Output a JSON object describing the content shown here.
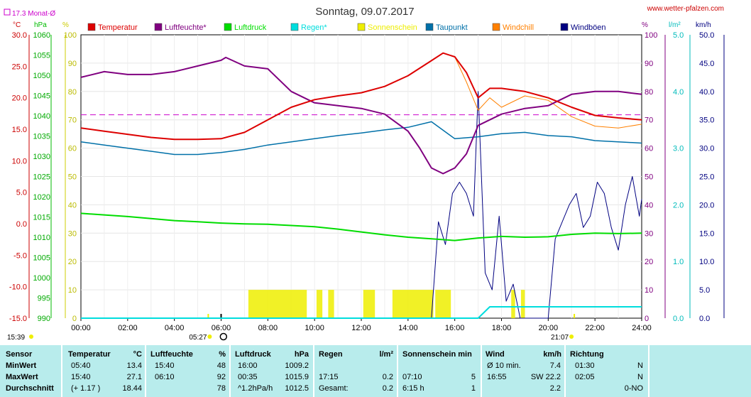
{
  "title": "Sonntag, 09.07.2017",
  "website": "www.wetter-pfalzen.com",
  "monthly_avg_label": "17.3 Monat-Ø",
  "units": {
    "temp": "°C",
    "pressure": "hPa",
    "humidity_left": "%",
    "humidity_right": "%",
    "rain": "l/m²",
    "wind": "km/h"
  },
  "axes": {
    "temp_ticks": [
      "30.0",
      "25.0",
      "20.0",
      "15.0",
      "10.0",
      "5.0",
      "0.0",
      "-5.0",
      "-10.0",
      "-15.0"
    ],
    "pressure_ticks": [
      "1060",
      "1055",
      "1050",
      "1045",
      "1040",
      "1035",
      "1030",
      "1025",
      "1020",
      "1015",
      "1010",
      "1005",
      "1000",
      "995",
      "990"
    ],
    "humidity_left_ticks": [
      "100",
      "90",
      "80",
      "70",
      "60",
      "50",
      "40",
      "30",
      "20",
      "10",
      "0"
    ],
    "humidity_right_ticks": [
      "100",
      "90",
      "80",
      "70",
      "60",
      "50",
      "40",
      "30",
      "20",
      "10",
      "0"
    ],
    "rain_ticks": [
      "5.0",
      "4.0",
      "3.0",
      "2.0",
      "1.0",
      "0.0"
    ],
    "wind_ticks": [
      "50.0",
      "45.0",
      "40.0",
      "35.0",
      "30.0",
      "25.0",
      "20.0",
      "15.0",
      "10.0",
      "5.0",
      "0.0"
    ],
    "time_ticks": [
      "00:00",
      "02:00",
      "04:00",
      "06:00",
      "08:00",
      "10:00",
      "12:00",
      "14:00",
      "16:00",
      "18:00",
      "20:00",
      "22:00",
      "24:00"
    ],
    "sunrise": "05:27",
    "sunset": "21:07",
    "first_light": "15:39"
  },
  "legend": [
    {
      "label": "Temperatur",
      "color": "#dd0000"
    },
    {
      "label": "Luftfeuchte*",
      "color": "#800080"
    },
    {
      "label": "Luftdruck",
      "color": "#00dd00"
    },
    {
      "label": "Regen*",
      "color": "#00dddd"
    },
    {
      "label": "Sonnenschein",
      "color": "#eeee00"
    },
    {
      "label": "Taupunkt",
      "color": "#0070a8"
    },
    {
      "label": "Windchill",
      "color": "#ff8000"
    },
    {
      "label": "Windböen",
      "color": "#000080"
    }
  ],
  "chart_data": {
    "type": "line",
    "title": "Sonntag, 09.07.2017",
    "x_range": [
      "00:00",
      "24:00"
    ],
    "y_ranges": {
      "temperature": [
        -15,
        30
      ],
      "pressure": [
        990,
        1060
      ],
      "humidity": [
        0,
        100
      ],
      "rain": [
        0,
        5
      ],
      "wind": [
        0,
        50
      ]
    },
    "monthly_avg_temp": 17.3,
    "series": [
      {
        "name": "Temperatur",
        "unit": "°C",
        "color": "#dd0000",
        "x": [
          0,
          1,
          2,
          3,
          4,
          5,
          6,
          7,
          8,
          9,
          10,
          11,
          12,
          13,
          14,
          15,
          15.5,
          16,
          16.5,
          17,
          17.5,
          18,
          19,
          20,
          21,
          22,
          23,
          24
        ],
        "values": [
          15.2,
          14.7,
          14.2,
          13.7,
          13.4,
          13.4,
          13.5,
          14.5,
          16.5,
          18.5,
          19.7,
          20.3,
          20.8,
          21.8,
          23.5,
          25.9,
          27.1,
          26.5,
          24.0,
          20.0,
          21.5,
          21.5,
          21.0,
          20.0,
          18.5,
          17.2,
          16.8,
          16.5
        ]
      },
      {
        "name": "Luftfeuchte*",
        "unit": "%",
        "color": "#800080",
        "x": [
          0,
          1,
          2,
          3,
          4,
          5,
          6,
          6.2,
          7,
          8,
          9,
          10,
          11,
          12,
          13,
          14,
          14.5,
          15,
          15.5,
          16,
          16.5,
          17,
          17.5,
          18,
          19,
          20,
          21,
          22,
          23,
          24
        ],
        "values": [
          85,
          87,
          86,
          86,
          87,
          89,
          91,
          92,
          89,
          88,
          80,
          76,
          75,
          74,
          72,
          66,
          60,
          53,
          51,
          53,
          58,
          68,
          70,
          72,
          74,
          75,
          79,
          80,
          80,
          79
        ]
      },
      {
        "name": "Luftdruck",
        "unit": "hPa",
        "color": "#00dd00",
        "x": [
          0,
          1,
          2,
          3,
          4,
          5,
          6,
          7,
          8,
          9,
          10,
          11,
          12,
          13,
          14,
          15,
          16,
          17,
          18,
          19,
          20,
          21,
          22,
          23,
          24
        ],
        "values": [
          1015.9,
          1015.5,
          1015.1,
          1014.6,
          1014.1,
          1013.8,
          1013.5,
          1013.3,
          1013.2,
          1012.9,
          1012.6,
          1012.0,
          1011.3,
          1010.6,
          1010.0,
          1009.6,
          1009.2,
          1009.8,
          1010.2,
          1010.0,
          1010.1,
          1010.7,
          1011.0,
          1010.9,
          1011.0
        ]
      },
      {
        "name": "Regen*",
        "unit": "l/m²",
        "color": "#00dddd",
        "x": [
          0,
          17.0,
          17.25,
          17.5,
          18,
          24
        ],
        "values": [
          0,
          0,
          0.1,
          0.2,
          0.2,
          0.2
        ]
      },
      {
        "name": "Taupunkt",
        "unit": "°C",
        "color": "#0070a8",
        "x": [
          0,
          1,
          2,
          3,
          4,
          5,
          6,
          7,
          8,
          9,
          10,
          11,
          12,
          13,
          14,
          15,
          16,
          17,
          18,
          19,
          20,
          21,
          22,
          23,
          24
        ],
        "values": [
          13.0,
          12.5,
          12.0,
          11.5,
          11.0,
          11.0,
          11.3,
          11.8,
          12.5,
          13.0,
          13.5,
          14.0,
          14.4,
          14.9,
          15.3,
          16.2,
          13.5,
          13.8,
          14.3,
          14.5,
          14.0,
          13.8,
          13.2,
          13.0,
          12.8
        ]
      },
      {
        "name": "Windchill",
        "unit": "°C",
        "color": "#ff8000",
        "x": [
          16,
          16.5,
          17,
          17.5,
          18,
          19,
          20,
          21,
          22,
          23,
          24
        ],
        "values": [
          26.5,
          22.5,
          18.0,
          20.0,
          18.5,
          20.3,
          19.6,
          17.0,
          15.5,
          15.2,
          15.8
        ]
      },
      {
        "name": "Windböen",
        "unit": "km/h",
        "color": "#000080",
        "x": [
          0,
          15.0,
          15.3,
          15.6,
          15.9,
          16.2,
          16.5,
          16.8,
          17.0,
          17.3,
          17.6,
          17.9,
          18.2,
          18.5,
          18.8,
          19.1,
          19.4,
          19.7,
          20.0,
          20.3,
          20.6,
          20.9,
          21.2,
          21.5,
          21.8,
          22.1,
          22.4,
          22.7,
          23.0,
          23.3,
          23.6,
          23.9,
          24
        ],
        "values": [
          0,
          0,
          17,
          13,
          22,
          24,
          22,
          18,
          40,
          8,
          5,
          18,
          3,
          6,
          0,
          0,
          0,
          0,
          0,
          14,
          17,
          20,
          22,
          16,
          18,
          24,
          22,
          16,
          12,
          20,
          25,
          18,
          21
        ]
      }
    ],
    "sunshine_hours_ranges": [
      [
        "07:10",
        "09:40"
      ],
      [
        "10:05",
        "10:20"
      ],
      [
        "10:35",
        "10:50"
      ],
      [
        "12:05",
        "12:35"
      ],
      [
        "13:20",
        "15:05"
      ],
      [
        "15:10",
        "15:50"
      ],
      [
        "18:25",
        "18:35"
      ],
      [
        "18:50",
        "19:00"
      ]
    ]
  },
  "stats": {
    "headers": {
      "sensor": "Sensor",
      "temp": "Temperatur",
      "temp_unit": "°C",
      "hum": "Luftfeuchte",
      "hum_unit": "%",
      "press": "Luftdruck",
      "press_unit": "hPa",
      "rain": "Regen",
      "rain_unit": "l/m²",
      "sun": "Sonnenschein min",
      "wind": "Wind",
      "wind_unit": "km/h",
      "dir": "Richtung"
    },
    "rows": [
      {
        "label": "MinWert",
        "temp_time": "05:40",
        "temp_val": "13.4",
        "hum_time": "15:40",
        "hum_val": "48",
        "press_time": "16:00",
        "press_val": "1009.2",
        "rain_time": "",
        "rain_val": "",
        "sun_time": "",
        "sun_val": "",
        "wind_time": "Ø 10 min.",
        "wind_val": "7.4",
        "dir_time": "01:30",
        "dir_val": "N"
      },
      {
        "label": "MaxWert",
        "temp_time": "15:40",
        "temp_val": "27.1",
        "hum_time": "06:10",
        "hum_val": "92",
        "press_time": "00:35",
        "press_val": "1015.9",
        "rain_time": "17:15",
        "rain_val": "0.2",
        "sun_time": "07:10",
        "sun_val": "5",
        "wind_time": "16:55",
        "wind_val": "SW 22.2",
        "dir_time": "02:05",
        "dir_val": "N"
      },
      {
        "label": "Durchschnitt",
        "temp_time": "(+ 1.17 )",
        "temp_val": "18.44",
        "hum_time": "",
        "hum_val": "78",
        "press_time": "^1.2hPa/h",
        "press_val": "1012.5",
        "rain_time": "Gesamt:",
        "rain_val": "0.2",
        "sun_time": "6:15 h",
        "sun_val": "1",
        "wind_time": "",
        "wind_val": "2.2",
        "dir_time": "",
        "dir_val": "0-NO"
      }
    ]
  }
}
